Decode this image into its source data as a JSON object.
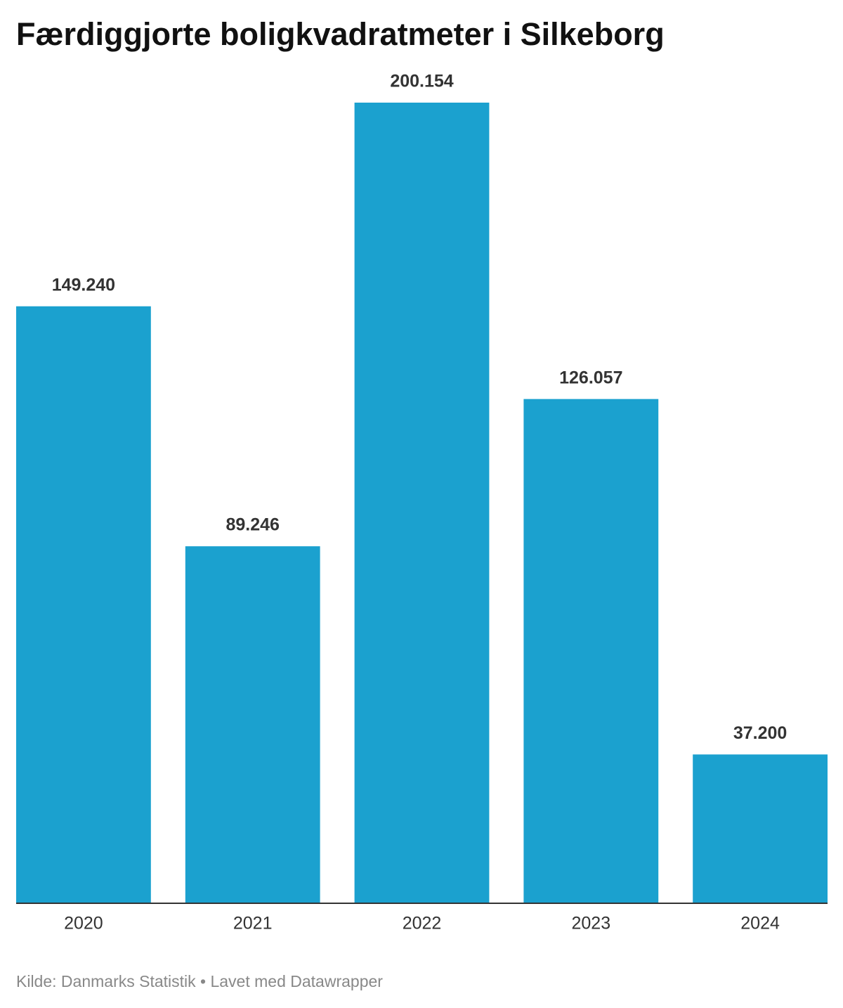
{
  "chart_data": {
    "type": "bar",
    "title": "Færdiggjorte boligkvadratmeter i Silkeborg",
    "categories": [
      "2020",
      "2021",
      "2022",
      "2023",
      "2024"
    ],
    "values": [
      149240,
      89246,
      200154,
      126057,
      37200
    ],
    "value_labels": [
      "149.240",
      "89.246",
      "200.154",
      "126.057",
      "37.200"
    ],
    "color": "#1ba1cf",
    "source": "Kilde: Danmarks Statistik • Lavet med Datawrapper"
  }
}
